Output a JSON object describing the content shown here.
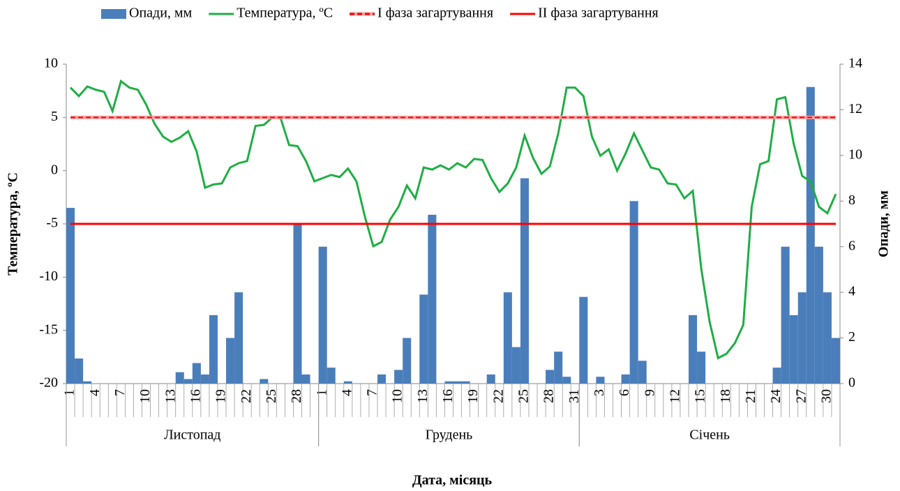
{
  "chart_data": {
    "type": "bar-line",
    "x_label": "Дата, місяць",
    "y_label": "Температура, ºC",
    "y2_label": "Опади, мм",
    "ylim": [
      -20,
      10
    ],
    "yticks": [
      -20,
      -15,
      -10,
      -5,
      0,
      5,
      10
    ],
    "y2lim": [
      0,
      14
    ],
    "y2ticks": [
      0,
      2,
      4,
      6,
      8,
      10,
      12,
      14
    ],
    "categories": [
      "1",
      null,
      null,
      "4",
      null,
      null,
      "7",
      null,
      null,
      "10",
      null,
      null,
      "13",
      null,
      null,
      "16",
      null,
      null,
      "19",
      null,
      null,
      "22",
      null,
      null,
      "25",
      null,
      null,
      "28",
      null,
      null,
      "1",
      null,
      null,
      "4",
      null,
      null,
      "7",
      null,
      null,
      "10",
      null,
      null,
      "13",
      null,
      null,
      "16",
      null,
      null,
      "19",
      null,
      null,
      "22",
      null,
      null,
      "25",
      null,
      null,
      "28",
      null,
      null,
      "31",
      null,
      null,
      "3",
      null,
      null,
      "6",
      null,
      null,
      "9",
      null,
      null,
      "12",
      null,
      null,
      "15",
      null,
      null,
      "18",
      null,
      null,
      "21",
      null,
      null,
      "24",
      null,
      null,
      "27",
      null,
      null,
      "30",
      null
    ],
    "groups": [
      {
        "label": "Листопад",
        "span": 30
      },
      {
        "label": "Грудень",
        "span": 31
      },
      {
        "label": "Січень",
        "span": 31
      }
    ],
    "series": [
      {
        "name": "Опади, мм",
        "type": "bar",
        "axis": "y2",
        "color": "#4a7ebb",
        "values": [
          7.7,
          1.1,
          0.1,
          0,
          0,
          0,
          0,
          0,
          0,
          0,
          0,
          0,
          0,
          0.5,
          0.2,
          0.9,
          0.4,
          3.0,
          0,
          2.0,
          4.0,
          0,
          0,
          0.2,
          0,
          0,
          0,
          7.0,
          0.4,
          0,
          6.0,
          0.7,
          0,
          0.1,
          0,
          0,
          0,
          0.4,
          0,
          0.6,
          2.0,
          0,
          3.9,
          7.4,
          0,
          0.1,
          0.1,
          0.1,
          0,
          0,
          0.4,
          0,
          4.0,
          1.6,
          9.0,
          0,
          0,
          0.6,
          1.4,
          0.3,
          0,
          3.8,
          0,
          0.3,
          0,
          0,
          0.4,
          8.0,
          1.0,
          0,
          0,
          0,
          0,
          0,
          3.0,
          1.4,
          0,
          0,
          0,
          0,
          0,
          0,
          0,
          0,
          0.7,
          6.0,
          3.0,
          4.0,
          13.0,
          6.0,
          4.0,
          2.0
        ]
      },
      {
        "name": "Температура, ºC",
        "type": "line",
        "color": "#1fae45",
        "values": [
          7.8,
          7.0,
          7.9,
          7.6,
          7.4,
          5.6,
          8.4,
          7.8,
          7.6,
          6.2,
          4.4,
          3.2,
          2.7,
          3.1,
          3.7,
          1.8,
          -1.6,
          -1.3,
          -1.2,
          0.3,
          0.7,
          0.9,
          4.2,
          4.3,
          5.0,
          4.9,
          2.4,
          2.3,
          0.9,
          -1.0,
          -0.7,
          -0.4,
          -0.6,
          0.2,
          -1.0,
          -4.3,
          -7.1,
          -6.7,
          -4.6,
          -3.4,
          -1.4,
          -2.6,
          0.3,
          0.1,
          0.5,
          0.1,
          0.7,
          0.3,
          1.1,
          1.0,
          -0.7,
          -2.0,
          -1.2,
          0.3,
          3.3,
          1.2,
          -0.3,
          0.4,
          3.5,
          7.8,
          7.8,
          7.0,
          3.2,
          1.4,
          2.0,
          0.0,
          1.6,
          3.5,
          1.9,
          0.3,
          0.1,
          -1.2,
          -1.3,
          -2.6,
          -1.9,
          -9.2,
          -14.2,
          -17.6,
          -17.2,
          -16.2,
          -14.5,
          -3.4,
          0.6,
          0.9,
          6.7,
          6.9,
          2.5,
          -0.5,
          -1.0,
          -3.4,
          -4.0,
          -2.2
        ]
      }
    ],
    "hlines": [
      {
        "name": "I фаза загартування",
        "value": 5,
        "color": "#ff0000",
        "dashed": true
      },
      {
        "name": "II фаза загартування",
        "value": -5,
        "color": "#ff0000",
        "dashed": false
      }
    ]
  }
}
